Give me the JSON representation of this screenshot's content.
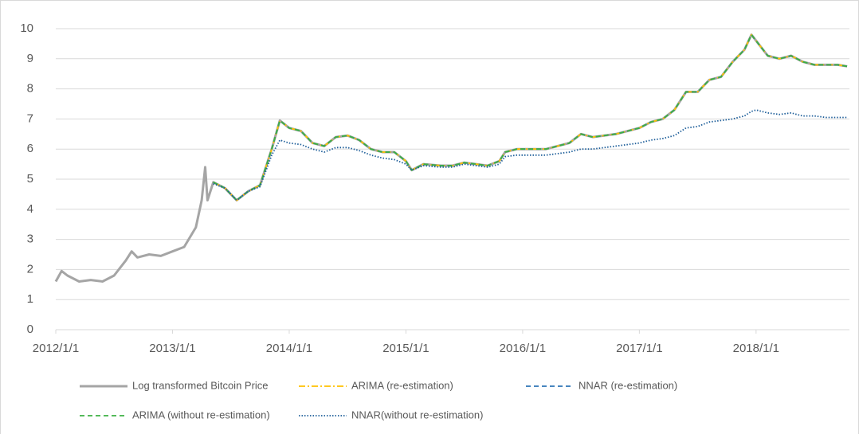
{
  "chart_data": {
    "type": "line",
    "x": [
      2012,
      2012.05,
      2012.1,
      2012.2,
      2012.3,
      2012.4,
      2012.5,
      2012.6,
      2012.65,
      2012.7,
      2012.8,
      2012.9,
      2013,
      2013.1,
      2013.2,
      2013.25,
      2013.28,
      2013.3,
      2013.35,
      2013.45,
      2013.55,
      2013.65,
      2013.75,
      2013.85,
      2013.92,
      2014,
      2014.1,
      2014.2,
      2014.3,
      2014.4,
      2014.5,
      2014.6,
      2014.7,
      2014.8,
      2014.9,
      2015,
      2015.05,
      2015.15,
      2015.3,
      2015.4,
      2015.5,
      2015.6,
      2015.7,
      2015.8,
      2015.85,
      2015.95,
      2016,
      2016.2,
      2016.4,
      2016.5,
      2016.6,
      2016.8,
      2017,
      2017.1,
      2017.2,
      2017.3,
      2017.4,
      2017.5,
      2017.6,
      2017.7,
      2017.8,
      2017.9,
      2017.96,
      2018,
      2018.1,
      2018.2,
      2018.3,
      2018.4,
      2018.5,
      2018.6,
      2018.7,
      2018.78
    ],
    "series": [
      {
        "name": "Log transformed Bitcoin Price",
        "color": "#a5a5a5",
        "dash": "solid",
        "values": [
          1.6,
          1.95,
          1.8,
          1.6,
          1.65,
          1.6,
          1.8,
          2.3,
          2.6,
          2.4,
          2.5,
          2.45,
          2.6,
          2.75,
          3.4,
          4.3,
          5.4,
          4.3,
          4.9,
          4.7,
          4.3,
          4.6,
          4.8,
          6.0,
          6.95,
          6.7,
          6.6,
          6.2,
          6.1,
          6.4,
          6.45,
          6.3,
          6.0,
          5.9,
          5.9,
          5.6,
          5.3,
          5.5,
          5.45,
          5.45,
          5.55,
          5.5,
          5.45,
          5.6,
          5.9,
          6.0,
          6.0,
          6.0,
          6.2,
          6.5,
          6.4,
          6.5,
          6.7,
          6.9,
          7.0,
          7.3,
          7.9,
          7.9,
          8.3,
          8.4,
          8.9,
          9.3,
          9.8,
          9.6,
          9.1,
          9.0,
          9.1,
          8.9,
          8.8,
          8.8,
          8.8,
          8.75
        ]
      },
      {
        "name": "ARIMA (re-estimation)",
        "color": "#ffc000",
        "dash": "dashdot",
        "values": [
          null,
          null,
          null,
          null,
          null,
          null,
          null,
          null,
          null,
          null,
          null,
          null,
          null,
          null,
          null,
          null,
          null,
          null,
          4.9,
          4.7,
          4.3,
          4.6,
          4.8,
          6.0,
          6.95,
          6.7,
          6.6,
          6.2,
          6.1,
          6.4,
          6.45,
          6.3,
          6.0,
          5.9,
          5.9,
          5.6,
          5.3,
          5.5,
          5.45,
          5.45,
          5.55,
          5.5,
          5.45,
          5.6,
          5.9,
          6.0,
          6.0,
          6.0,
          6.2,
          6.5,
          6.4,
          6.5,
          6.7,
          6.9,
          7.0,
          7.3,
          7.9,
          7.9,
          8.3,
          8.4,
          8.9,
          9.3,
          9.8,
          9.6,
          9.1,
          9.0,
          9.1,
          8.9,
          8.8,
          8.8,
          8.8,
          8.75
        ]
      },
      {
        "name": "NNAR (re-estimation)",
        "color": "#2e75b6",
        "dash": "dash",
        "values": [
          null,
          null,
          null,
          null,
          null,
          null,
          null,
          null,
          null,
          null,
          null,
          null,
          null,
          null,
          null,
          null,
          null,
          null,
          4.9,
          4.7,
          4.3,
          4.6,
          4.8,
          6.0,
          6.95,
          6.7,
          6.6,
          6.2,
          6.1,
          6.4,
          6.45,
          6.3,
          6.0,
          5.9,
          5.9,
          5.6,
          5.3,
          5.5,
          5.45,
          5.45,
          5.55,
          5.5,
          5.45,
          5.6,
          5.9,
          6.0,
          6.0,
          6.0,
          6.2,
          6.5,
          6.4,
          6.5,
          6.7,
          6.9,
          7.0,
          7.3,
          7.9,
          7.9,
          8.3,
          8.4,
          8.9,
          9.3,
          9.8,
          9.6,
          9.1,
          9.0,
          9.1,
          8.9,
          8.8,
          8.8,
          8.8,
          8.75
        ]
      },
      {
        "name": "ARIMA (without re-estimation)",
        "color": "#3cb043",
        "dash": "dash",
        "values": [
          null,
          null,
          null,
          null,
          null,
          null,
          null,
          null,
          null,
          null,
          null,
          null,
          null,
          null,
          null,
          null,
          null,
          null,
          4.9,
          4.7,
          4.3,
          4.6,
          4.8,
          6.0,
          6.95,
          6.7,
          6.6,
          6.2,
          6.1,
          6.4,
          6.45,
          6.3,
          6.0,
          5.9,
          5.9,
          5.6,
          5.3,
          5.5,
          5.45,
          5.45,
          5.55,
          5.5,
          5.45,
          5.6,
          5.9,
          6.0,
          6.0,
          6.0,
          6.2,
          6.5,
          6.4,
          6.5,
          6.7,
          6.9,
          7.0,
          7.3,
          7.9,
          7.9,
          8.3,
          8.4,
          8.9,
          9.3,
          9.8,
          9.6,
          9.1,
          9.0,
          9.1,
          8.9,
          8.8,
          8.8,
          8.8,
          8.75
        ]
      },
      {
        "name": "NNAR(without re-estimation)",
        "color": "#1f5f9a",
        "dash": "dot",
        "values": [
          null,
          null,
          null,
          null,
          null,
          null,
          null,
          null,
          null,
          null,
          null,
          null,
          null,
          null,
          null,
          null,
          null,
          null,
          4.85,
          4.7,
          4.3,
          4.6,
          4.75,
          5.8,
          6.3,
          6.2,
          6.15,
          6.0,
          5.9,
          6.05,
          6.05,
          5.95,
          5.8,
          5.7,
          5.65,
          5.5,
          5.3,
          5.45,
          5.4,
          5.4,
          5.5,
          5.45,
          5.4,
          5.5,
          5.75,
          5.8,
          5.8,
          5.8,
          5.9,
          6.0,
          6.0,
          6.1,
          6.2,
          6.3,
          6.35,
          6.45,
          6.7,
          6.75,
          6.9,
          6.95,
          7.0,
          7.1,
          7.25,
          7.3,
          7.2,
          7.15,
          7.2,
          7.1,
          7.1,
          7.05,
          7.05,
          7.05
        ]
      }
    ],
    "xlim": [
      2012,
      2018.8
    ],
    "xticks": [
      {
        "value": 2012,
        "label": "2012/1/1"
      },
      {
        "value": 2013,
        "label": "2013/1/1"
      },
      {
        "value": 2014,
        "label": "2014/1/1"
      },
      {
        "value": 2015,
        "label": "2015/1/1"
      },
      {
        "value": 2016,
        "label": "2016/1/1"
      },
      {
        "value": 2017,
        "label": "2017/1/1"
      },
      {
        "value": 2018,
        "label": "2018/1/1"
      }
    ],
    "ylim": [
      0,
      10
    ],
    "yticks": [
      0,
      1,
      2,
      3,
      4,
      5,
      6,
      7,
      8,
      9,
      10
    ],
    "grid": true,
    "legend": "bottom"
  }
}
